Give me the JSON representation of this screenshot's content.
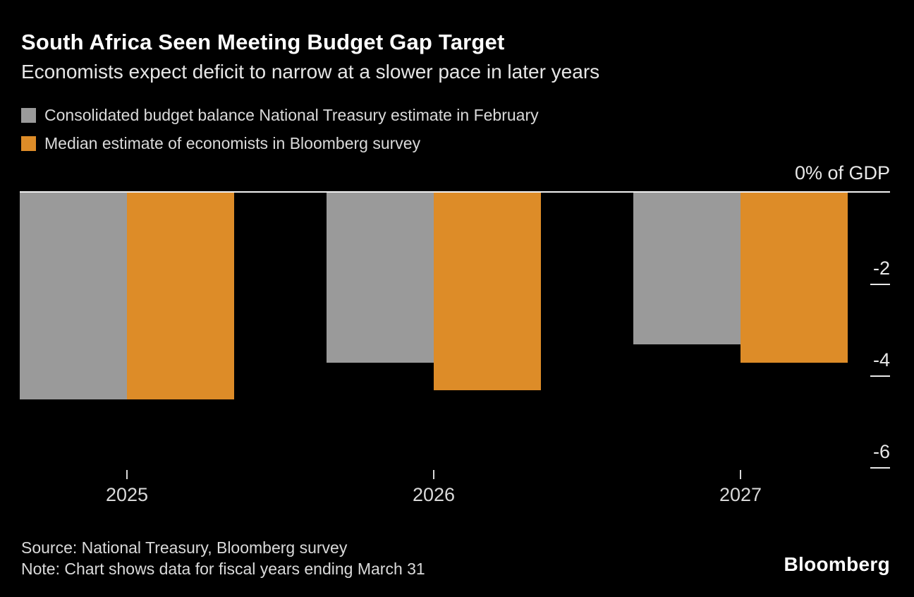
{
  "header": {
    "title": "South Africa Seen Meeting Budget Gap Target",
    "subtitle": "Economists expect deficit to narrow at a slower pace in later years"
  },
  "chart_data": {
    "type": "bar",
    "categories": [
      "2025",
      "2026",
      "2027"
    ],
    "series": [
      {
        "name": "Consolidated budget balance National Treasury estimate in February",
        "color": "#9a9a9a",
        "values": [
          -4.5,
          -3.7,
          -3.3
        ]
      },
      {
        "name": "Median estimate of economists in Bloomberg survey",
        "color": "#dd8c28",
        "values": [
          -4.5,
          -4.3,
          -3.7
        ]
      }
    ],
    "axis_top_label": "0% of GDP",
    "yticks": [
      -2,
      -4,
      -6
    ],
    "ylim": [
      -6.8,
      0
    ],
    "unit": "% of GDP",
    "grid": false,
    "legend_position": "top-left"
  },
  "footer": {
    "source": "Source: National Treasury, Bloomberg survey",
    "note": "Note: Chart shows data for fiscal years ending March 31",
    "logo": "Bloomberg"
  },
  "colors": {
    "background": "#000000",
    "bar_gray": "#9a9a9a",
    "bar_orange": "#dd8c28",
    "axis_line": "#f2f2f2",
    "tick_text": "#e8e8e8",
    "text_primary": "#ffffff",
    "text_secondary": "#dadada"
  }
}
